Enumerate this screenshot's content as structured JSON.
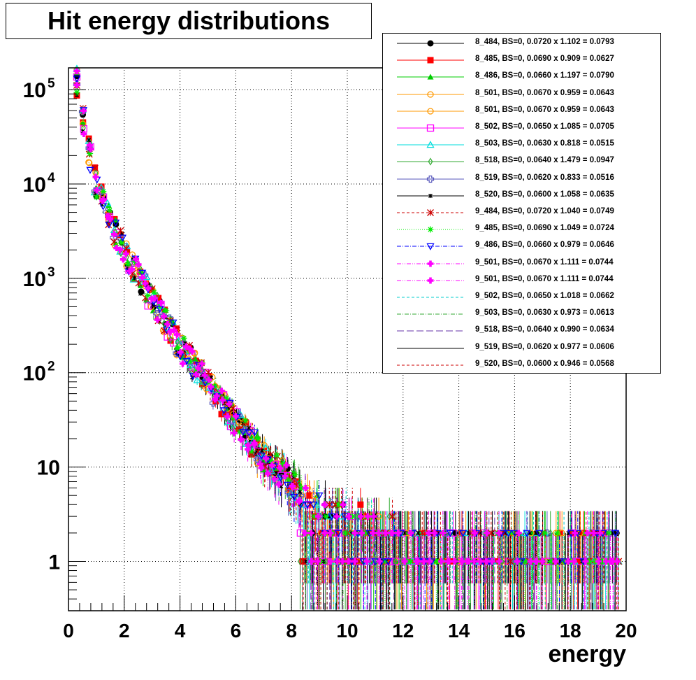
{
  "chart_data": {
    "type": "scatter",
    "title": "Hit energy distributions",
    "xlabel": "energy",
    "ylabel": "",
    "xlim": [
      0,
      20
    ],
    "ylim": [
      0.3,
      170000
    ],
    "yscale": "log",
    "grid": true,
    "legend_position": "top-right",
    "x_ticks": [
      "0",
      "2",
      "4",
      "6",
      "8",
      "10",
      "12",
      "14",
      "16",
      "18",
      "20"
    ],
    "y_ticks": [
      {
        "value": 1,
        "label": "1"
      },
      {
        "value": 10,
        "label": "10"
      },
      {
        "value": 100,
        "label": "10",
        "exp": "2"
      },
      {
        "value": 1000,
        "label": "10",
        "exp": "3"
      },
      {
        "value": 10000,
        "label": "10",
        "exp": "4"
      },
      {
        "value": 100000,
        "label": "10",
        "exp": "5"
      }
    ],
    "series": [
      {
        "name": "8_484, BS=0, 0.0720 x 1.102 = 0.0793",
        "color": "#000000",
        "marker": "filled-circle",
        "line": "solid"
      },
      {
        "name": "8_485, BS=0, 0.0690 x 0.909 = 0.0627",
        "color": "#ff0000",
        "marker": "filled-square",
        "line": "solid"
      },
      {
        "name": "8_486, BS=0, 0.0660 x 1.197 = 0.0790",
        "color": "#00cc00",
        "marker": "filled-triangle",
        "line": "solid"
      },
      {
        "name": "8_501, BS=0, 0.0670 x 0.959 = 0.0643",
        "color": "#ff9900",
        "marker": "open-circle",
        "line": "solid"
      },
      {
        "name": "8_501, BS=0, 0.0670 x 0.959 = 0.0643",
        "color": "#ff9900",
        "marker": "open-circle",
        "line": "solid"
      },
      {
        "name": "8_502, BS=0, 0.0650 x 1.085 = 0.0705",
        "color": "#ff00ff",
        "marker": "open-square",
        "line": "solid"
      },
      {
        "name": "8_503, BS=0, 0.0630 x 0.818 = 0.0515",
        "color": "#00dddd",
        "marker": "open-triangle",
        "line": "solid"
      },
      {
        "name": "8_518, BS=0, 0.0640 x 1.479 = 0.0947",
        "color": "#33aa33",
        "marker": "open-diamond",
        "line": "solid"
      },
      {
        "name": "8_519, BS=0, 0.0620 x 0.833 = 0.0516",
        "color": "#5555bb",
        "marker": "open-cross",
        "line": "solid"
      },
      {
        "name": "8_520, BS=0, 0.0600 x 1.058 = 0.0635",
        "color": "#000000",
        "marker": "star",
        "line": "solid"
      },
      {
        "name": "9_484, BS=0, 0.0720 x 1.040 = 0.0749",
        "color": "#cc0000",
        "marker": "x-star",
        "line": "dashed"
      },
      {
        "name": "9_485, BS=0, 0.0690 x 1.049 = 0.0724",
        "color": "#00ee00",
        "marker": "asterisk",
        "line": "dotted"
      },
      {
        "name": "9_486, BS=0, 0.0660 x 0.979 = 0.0646",
        "color": "#0000ff",
        "marker": "open-inverted-triangle",
        "line": "dashdot"
      },
      {
        "name": "9_501, BS=0, 0.0670 x 1.111 = 0.0744",
        "color": "#ff00ff",
        "marker": "filled-cross",
        "line": "dashdotdot"
      },
      {
        "name": "9_501, BS=0, 0.0670 x 1.111 = 0.0744",
        "color": "#ff00ff",
        "marker": "filled-cross",
        "line": "dashdotdot"
      },
      {
        "name": "9_502, BS=0, 0.0650 x 1.018 = 0.0662",
        "color": "#00cccc",
        "marker": "none",
        "line": "dashed"
      },
      {
        "name": "9_503, BS=0, 0.0630 x 0.973 = 0.0613",
        "color": "#33aa33",
        "marker": "none",
        "line": "dashdot"
      },
      {
        "name": "9_518, BS=0, 0.0640 x 0.990 = 0.0634",
        "color": "#6633aa",
        "marker": "none",
        "line": "longdash"
      },
      {
        "name": "9_519, BS=0, 0.0620 x 0.977 = 0.0606",
        "color": "#000000",
        "marker": "none",
        "line": "solid"
      },
      {
        "name": "9_520, BS=0, 0.0600 x 0.946 = 0.0568",
        "color": "#cc0000",
        "marker": "none",
        "line": "dashed"
      }
    ],
    "reference_curve": {
      "x": [
        0.3,
        0.5,
        1,
        1.5,
        2,
        3,
        4,
        5,
        6,
        7,
        8,
        9,
        10,
        11,
        12,
        13,
        14,
        15,
        16,
        17,
        18,
        19,
        19.75
      ],
      "y": [
        120000,
        50000,
        9000,
        4000,
        1900,
        580,
        190,
        75,
        30,
        13,
        7,
        4.2,
        3,
        2.2,
        1.7,
        1.4,
        1.2,
        1.1,
        1.0,
        1.0,
        1.0,
        1.0,
        1.0
      ]
    }
  }
}
